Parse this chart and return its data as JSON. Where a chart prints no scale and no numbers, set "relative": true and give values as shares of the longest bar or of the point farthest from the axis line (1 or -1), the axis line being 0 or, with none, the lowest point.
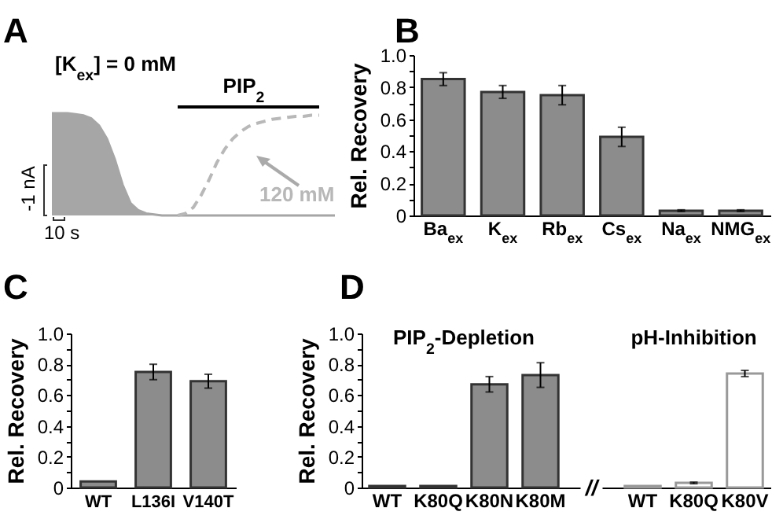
{
  "chart_data": [
    {
      "type": "line",
      "title": "A",
      "relative": true,
      "categories": [
        null,
        null,
        null,
        null,
        null,
        null,
        null,
        null,
        null,
        null,
        null,
        null,
        null,
        null,
        null,
        null,
        null,
        null,
        null,
        null,
        null,
        null,
        null,
        null,
        null,
        null,
        null,
        null,
        null,
        null,
        null,
        null,
        null,
        null,
        null,
        null,
        null
      ],
      "series": [
        {
          "type": "area",
          "color": "#a6a6a6",
          "values": [
            1,
            1,
            1,
            0.99,
            0.98,
            0.95,
            0.88,
            0.75,
            0.55,
            0.3,
            0.12,
            0.05,
            0.02,
            0.01,
            0,
            0,
            0,
            0,
            0,
            0,
            0,
            0,
            0,
            0,
            0,
            0,
            0,
            0,
            0,
            0,
            0,
            0,
            0,
            0,
            0,
            0,
            0
          ]
        },
        {
          "type": "line",
          "color": "#b8b8b8",
          "line_style": "dashed",
          "values": [
            null,
            null,
            null,
            null,
            null,
            null,
            null,
            null,
            null,
            null,
            null,
            null,
            null,
            null,
            null,
            null,
            0,
            0.02,
            0.08,
            0.2,
            0.35,
            0.52,
            0.65,
            0.75,
            0.82,
            0.87,
            0.9,
            0.92,
            0.94,
            0.95,
            0.96,
            0.97,
            0.97,
            0.98,
            0.98,
            null,
            null
          ]
        }
      ],
      "annotations": [
        "[K$_{ex}$] = 0 mM",
        "PIP$_{2}$",
        "120 mM",
        "-1 nA",
        "10 s"
      ]
    },
    {
      "type": "bar",
      "title": "B",
      "ylabel": "Rel. Recovery",
      "categories": [
        "Ba$_{ex}$",
        "K$_{ex}$",
        "Rb$_{ex}$",
        "Cs$_{ex}$",
        "Na$_{ex}$",
        "NMG$_{ex}$"
      ],
      "values": [
        0.85,
        0.77,
        0.75,
        0.49,
        0.03,
        0.03
      ],
      "errors": [
        0.04,
        0.04,
        0.06,
        0.06,
        0.005,
        0.005
      ],
      "color": "#8c8c8c",
      "ylim": [
        0,
        1
      ],
      "yticks": [
        0,
        {
          "value": 0.1,
          "label": null
        },
        0.2,
        {
          "value": 0.3,
          "label": null
        },
        0.4,
        {
          "value": 0.5,
          "label": null
        },
        0.6,
        {
          "value": 0.7,
          "label": null
        },
        0.8,
        {
          "value": 0.9,
          "label": null
        },
        {
          "value": 1,
          "label": "1.0"
        }
      ]
    },
    {
      "type": "bar",
      "title": "C",
      "ylabel": "Rel. Recovery",
      "categories": [
        "WT",
        "L136I",
        "V140T"
      ],
      "values": [
        0.04,
        0.75,
        0.69
      ],
      "errors": [
        null,
        0.05,
        0.045
      ],
      "color": "#8c8c8c",
      "ylim": [
        0,
        1
      ],
      "yticks": [
        0,
        {
          "value": 0.1,
          "label": null
        },
        0.2,
        {
          "value": 0.3,
          "label": null
        },
        0.4,
        {
          "value": 0.5,
          "label": null
        },
        0.6,
        {
          "value": 0.7,
          "label": null
        },
        0.8,
        {
          "value": 0.9,
          "label": null
        },
        {
          "value": 1,
          "label": "1.0"
        }
      ]
    },
    {
      "type": "bar",
      "title": "D",
      "ylabel": "Rel. Recovery",
      "categories": [
        "WT",
        "K80Q",
        "K80N",
        "K80M",
        null,
        "WT",
        "K80Q",
        "K80V"
      ],
      "values": [
        0.01,
        0.01,
        0.67,
        0.73,
        null,
        0.01,
        0.03,
        0.74
      ],
      "errors": [
        null,
        null,
        0.05,
        0.08,
        null,
        null,
        0.005,
        0.02
      ],
      "colors": [
        "#8c8c8c",
        "#8c8c8c",
        "#8c8c8c",
        "#8c8c8c",
        null,
        "#ffffff",
        "#ffffff",
        "#ffffff"
      ],
      "ylim": [
        0,
        1
      ],
      "yticks": [
        0,
        {
          "value": 0.1,
          "label": null
        },
        0.2,
        {
          "value": 0.3,
          "label": null
        },
        0.4,
        {
          "value": 0.5,
          "label": null
        },
        0.6,
        {
          "value": 0.7,
          "label": null
        },
        0.8,
        {
          "value": 0.9,
          "label": null
        },
        {
          "value": 1,
          "label": "1.0"
        }
      ],
      "annotations": [
        "PIP$_{2}$-Depletion",
        "pH-Inhibition",
        "//"
      ]
    }
  ]
}
